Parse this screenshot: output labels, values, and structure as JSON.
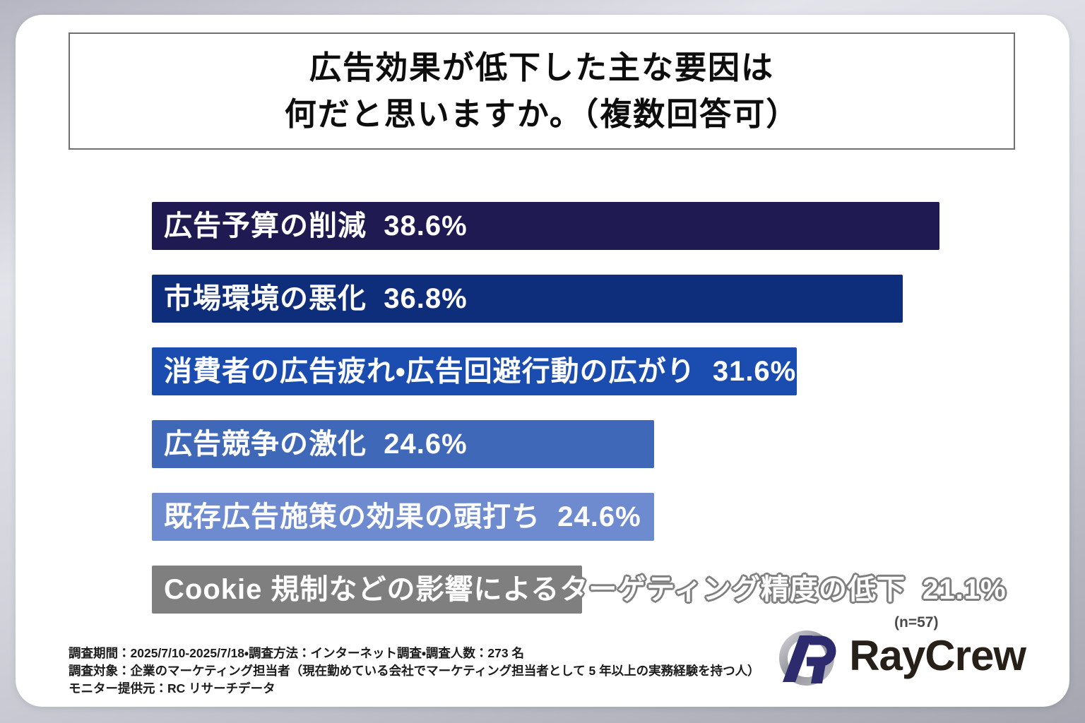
{
  "title": {
    "line1": "広告効果が低下した主な要因は",
    "line2": "何だと思いますか。（複数回答可）"
  },
  "chart_data": {
    "type": "bar",
    "orientation": "horizontal",
    "unit": "%",
    "categories": [
      "広告予算の削減",
      "市場環境の悪化",
      "消費者の広告疲れ・広告回避行動の広がり",
      "広告競争の激化",
      "既存広告施策の効果の頭打ち",
      "Cookie 規制などの影響によるターゲティング精度の低下"
    ],
    "values": [
      38.6,
      36.8,
      31.6,
      24.6,
      24.6,
      21.1
    ],
    "bar_colors": [
      "#1f1a51",
      "#0e2d7a",
      "#1b4db0",
      "#4068b8",
      "#6e8bd0",
      "#7f7f7f"
    ],
    "value_labels_inside": true,
    "xlim": [
      0,
      38.6
    ],
    "grid": false,
    "legend": "none",
    "sample_size_label": "(n=57)"
  },
  "footer": {
    "line1": "調査期間：2025/7/10-2025/7/18・調査方法：インターネット調査・調査人数：273 名",
    "line2": "調査対象：企業のマーケティング担当者（現在勤めている会社でマーケティング担当者として 5 年以上の実務経験を持つ人）",
    "line3": "モニター提供元：RC リサーチデータ"
  },
  "logo": {
    "text": "RayCrew",
    "icon_navy": "#2e2a6e",
    "icon_silver": "#9a9aa2"
  }
}
